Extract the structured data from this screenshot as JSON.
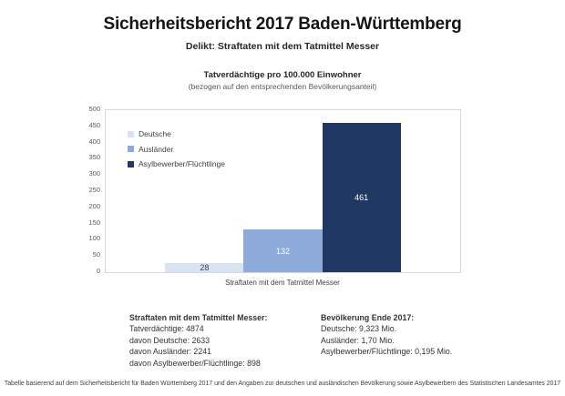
{
  "page": {
    "title": "Sicherheitsbericht 2017 Baden-Württemberg",
    "subtitle": "Delikt: Straftaten mit dem Tatmittel Messer"
  },
  "chart_data": {
    "type": "bar",
    "title": "Tatverdächtige pro 100.000 Einwohner",
    "subtitle": "(bezogen auf den entsprechenden Bevölkerungsanteil)",
    "categories": [
      "Straftaten mit dem Tatmittel Messer"
    ],
    "series": [
      {
        "name": "Deutsche",
        "values": [
          28
        ],
        "color": "#D9E2F3",
        "label_color": "#404040"
      },
      {
        "name": "Ausländer",
        "values": [
          132
        ],
        "color": "#8EAADB",
        "label_color": "#FFFFFF"
      },
      {
        "name": "Asylbewerber/Flüchtlinge",
        "values": [
          461
        ],
        "color": "#1F3864",
        "label_color": "#FFFFFF"
      }
    ],
    "xlabel": "Straftaten mit dem Tatmittel Messer",
    "ylabel": "",
    "ylim": [
      0,
      500
    ],
    "ytick_step": 50,
    "grid": false,
    "legend_position": "inside-top-left",
    "axis_color": "#D9D9D9",
    "tick_label_color": "#595959"
  },
  "summary_left": {
    "heading": "Straftaten mit dem Tatmittel Messer:",
    "lines": [
      "Tatverdächtige: 4874",
      "davon Deutsche: 2633",
      "davon Ausländer: 2241",
      "davon Asylbewerber/Flüchtlinge: 898"
    ]
  },
  "summary_right": {
    "heading": "Bevölkerung Ende 2017:",
    "lines": [
      "Deutsche: 9,323 Mio.",
      "Ausländer: 1,70 Mio.",
      "Asylbewerber/Flüchtlinge: 0,195 Mio."
    ]
  },
  "footer": "Tabelle basierend auf dem Sicherheitsbericht für Baden Württemberg 2017 und den Angaben zur deutschen und ausländischen Bevölkerung sowie Asylbewerbern des Statistischen Landesamtes 2017"
}
